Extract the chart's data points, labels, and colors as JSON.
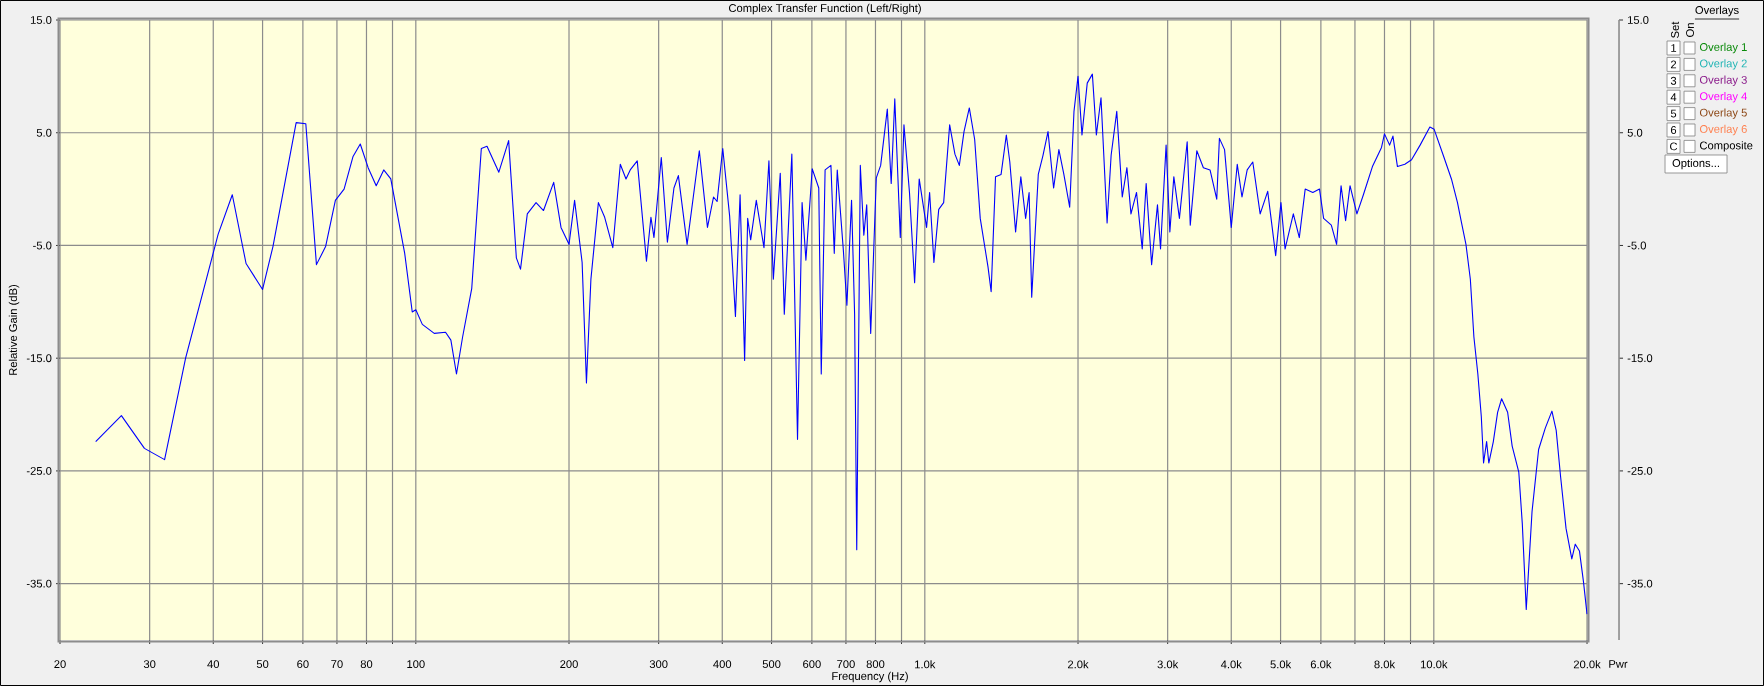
{
  "chart_data": {
    "type": "line",
    "title": "Complex Transfer Function (Left/Right)",
    "xlabel": "Frequency (Hz)",
    "ylabel": "Relative Gain (dB)",
    "y2label": "Pwr",
    "log": "x",
    "grid": true,
    "xlim": [
      20,
      20000
    ],
    "ylim": [
      -40,
      15
    ],
    "y2lim": [
      -40,
      15
    ],
    "xticks": [
      20,
      30,
      40,
      50,
      60,
      70,
      80,
      {
        "value": 90,
        "label": null
      },
      100,
      200,
      300,
      400,
      500,
      600,
      700,
      800,
      {
        "value": 900,
        "label": null
      },
      {
        "value": 1000,
        "label": "1.0k"
      },
      {
        "value": 2000,
        "label": "2.0k"
      },
      {
        "value": 3000,
        "label": "3.0k"
      },
      {
        "value": 4000,
        "label": "4.0k"
      },
      {
        "value": 5000,
        "label": "5.0k"
      },
      {
        "value": 6000,
        "label": "6.0k"
      },
      {
        "value": 7000,
        "label": null
      },
      {
        "value": 8000,
        "label": "8.0k"
      },
      {
        "value": 9000,
        "label": null
      },
      {
        "value": 10000,
        "label": "10.0k"
      },
      {
        "value": 20000,
        "label": "20.0k"
      }
    ],
    "yticks": [
      {
        "value": 15,
        "label": "15.0"
      },
      {
        "value": 5,
        "label": "5.0"
      },
      {
        "value": -5,
        "label": "-5.0"
      },
      {
        "value": -15,
        "label": "-15.0"
      },
      {
        "value": -25,
        "label": "-25.0"
      },
      {
        "value": -35,
        "label": "-35.0"
      }
    ],
    "y2ticks": [
      {
        "value": 15,
        "label": "15.0"
      },
      {
        "value": 5,
        "label": "5.0"
      },
      {
        "value": -5,
        "label": "-5.0"
      },
      {
        "value": -15,
        "label": "-15.0"
      },
      {
        "value": -25,
        "label": "-25.0"
      },
      {
        "value": -35,
        "label": "-35.0"
      }
    ],
    "x": [
      23.5,
      26.4,
      29.3,
      32.1,
      35.3,
      40.9,
      43.6,
      46.4,
      50,
      52.4,
      58.2,
      60.8,
      63.8,
      66.5,
      69.5,
      72.3,
      75.3,
      77.8,
      80.6,
      83.6,
      86.5,
      89.3,
      95.1,
      98.4,
      100,
      103,
      108.7,
      114.4,
      117.2,
      120.2,
      123.6,
      128.8,
      134.5,
      138,
      145.6,
      152.2,
      157.6,
      160.6,
      165.6,
      172.3,
      178.2,
      186.6,
      192.9,
      200,
      205.1,
      212.2,
      216.4,
      220.8,
      228.4,
      235,
      243.8,
      252.2,
      258.8,
      263.8,
      272.3,
      283.9,
      289.7,
      293.7,
      303.6,
      312.1,
      321.5,
      328,
      341.2,
      360.6,
      374.1,
      384.6,
      390.8,
      400.9,
      413.6,
      424.6,
      433.6,
      442.6,
      448.7,
      454.9,
      466.6,
      483.1,
      494,
      504,
      520,
      529.6,
      548,
      562.3,
      574,
      584,
      601,
      619,
      626,
      637,
      654,
      664,
      673,
      692,
      703,
      718,
      728,
      735,
      747,
      759,
      769,
      783,
      803,
      819,
      844,
      859,
      873,
      895,
      910,
      933,
      955,
      975,
      1008,
      1022,
      1042,
      1065,
      1089,
      1119,
      1146,
      1169,
      1194,
      1223,
      1253,
      1285,
      1331,
      1350,
      1377,
      1412,
      1446,
      1469,
      1508,
      1544,
      1578,
      1603,
      1622,
      1671,
      1707,
      1746,
      1791,
      1834,
      1876,
      1926,
      1964,
      2000,
      2036,
      2085,
      2134,
      2173,
      2219,
      2281,
      2323,
      2383,
      2443,
      2495,
      2541,
      2606,
      2674,
      2722,
      2790,
      2865,
      2905,
      2979,
      3030,
      3085,
      3164,
      3277,
      3323,
      3423,
      3526,
      3634,
      3746,
      3792,
      3881,
      4000,
      4110,
      4199,
      4299,
      4409,
      4559,
      4717,
      4890,
      5008,
      5103,
      5297,
      5442,
      5589,
      5785,
      5963,
      6075,
      6290,
      6442,
      6574,
      6710,
      6846,
      7063,
      7273,
      7576,
      7894,
      8000,
      8188,
      8312,
      8483,
      8772,
      9042,
      9399,
      9823,
      10016,
      10473,
      10830,
      11130,
      11337,
      11565,
      11797,
      11987,
      12204,
      12397,
      12524,
      12698,
      12825,
      13090,
      13346,
      13590,
      13965,
      14255,
      14688,
      14924,
      15192,
      15596,
      16066,
      16558,
      17065,
      17396,
      17744,
      18190,
      18670,
      18967,
      19327,
      19678,
      20000
    ],
    "series": [
      {
        "color": "#0000ff",
        "values": [
          -22.4,
          -20.1,
          -23.0,
          -24.0,
          -15.0,
          -4.0,
          -0.5,
          -6.6,
          -8.9,
          -5.1,
          5.9,
          5.8,
          -6.7,
          -5.1,
          -1.0,
          0.0,
          2.9,
          4.0,
          1.9,
          0.3,
          1.7,
          0.9,
          -5.7,
          -10.9,
          -10.7,
          -12.0,
          -12.8,
          -12.7,
          -13.4,
          -16.4,
          -13.1,
          -8.8,
          3.6,
          3.8,
          1.5,
          4.3,
          -6.1,
          -7.1,
          -2.2,
          -1.2,
          -1.9,
          0.6,
          -3.4,
          -4.9,
          -1.0,
          -6.5,
          -17.2,
          -8.0,
          -1.2,
          -2.5,
          -5.2,
          2.2,
          0.9,
          1.7,
          2.5,
          -6.4,
          -2.5,
          -4.3,
          2.8,
          -4.7,
          0.1,
          1.2,
          -4.9,
          3.4,
          -3.4,
          -0.7,
          -1.1,
          3.6,
          -2.4,
          -11.3,
          -0.5,
          -15.2,
          -2.6,
          -4.5,
          -1.0,
          -5.2,
          2.5,
          -8.0,
          1.4,
          -11.1,
          3.1,
          -22.2,
          -1.2,
          -6.3,
          1.8,
          0.1,
          -16.4,
          1.7,
          2.1,
          -5.7,
          1.7,
          -5.5,
          -10.3,
          -1.0,
          -11.1,
          -32.0,
          2.1,
          -4.1,
          -1.4,
          -12.8,
          1.0,
          2.1,
          7.1,
          0.5,
          8.0,
          -4.3,
          5.7,
          -0.3,
          -8.3,
          0.9,
          -3.4,
          -0.3,
          -6.5,
          -1.8,
          -1.2,
          5.7,
          3.1,
          2.1,
          5.1,
          7.2,
          4.4,
          -2.6,
          -6.9,
          -9.1,
          1.1,
          1.3,
          4.8,
          2.4,
          -3.8,
          1.1,
          -2.6,
          -0.3,
          -9.6,
          1.3,
          3.0,
          5.1,
          0.1,
          3.5,
          1.3,
          -1.6,
          6.9,
          10.0,
          4.8,
          9.4,
          10.2,
          4.8,
          8.1,
          -3.0,
          3.0,
          6.9,
          -0.7,
          1.9,
          -2.2,
          -0.3,
          -5.3,
          0.5,
          -6.7,
          -1.4,
          -5.3,
          3.9,
          -3.8,
          1.1,
          -2.6,
          4.2,
          -3.2,
          3.4,
          1.9,
          1.7,
          -0.9,
          4.5,
          3.5,
          -3.4,
          2.2,
          -0.7,
          1.7,
          2.4,
          -2.2,
          -0.2,
          -5.9,
          -1.2,
          -5.3,
          -2.2,
          -4.3,
          0.0,
          -0.3,
          0.0,
          -2.6,
          -3.2,
          -4.9,
          0.3,
          -2.8,
          0.3,
          -2.2,
          -0.5,
          2.0,
          3.7,
          4.9,
          3.9,
          4.7,
          2.0,
          2.2,
          2.6,
          3.9,
          5.5,
          5.3,
          2.8,
          0.9,
          -1.2,
          -3.0,
          -4.9,
          -8.0,
          -13.1,
          -16.4,
          -20.2,
          -24.3,
          -22.4,
          -24.3,
          -22.4,
          -19.8,
          -18.6,
          -19.8,
          -22.8,
          -25.1,
          -29.7,
          -37.3,
          -28.6,
          -23.1,
          -21.2,
          -19.7,
          -21.4,
          -25.5,
          -30.1,
          -32.8,
          -31.5,
          -32.1,
          -34.8,
          -37.7
        ]
      }
    ],
    "annotations": [
      "Overlays",
      "Set",
      "On",
      "1",
      "Overlay 1",
      "2",
      "Overlay 2",
      "3",
      "Overlay 3",
      "4",
      "Overlay 4",
      "5",
      "Overlay 5",
      "6",
      "Overlay 6",
      "C",
      "Composite",
      "Options..."
    ]
  }
}
